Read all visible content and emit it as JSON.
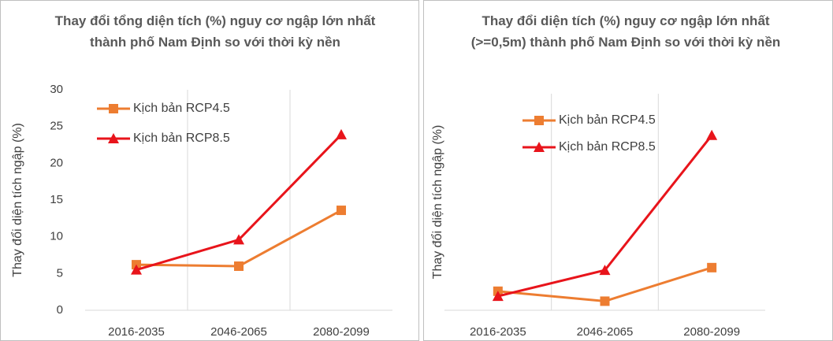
{
  "chart_data": [
    {
      "type": "line",
      "title": "Thay đổi tổng diện tích (%) nguy cơ ngập lớn nhất thành phố Nam Định so với thời kỳ nền",
      "y_label": "Thay đổi diện tích ngập (%)",
      "categories": [
        "2016-2035",
        "2046-2065",
        "2080-2099"
      ],
      "series": [
        {
          "name": "Kịch bản RCP4.5",
          "color": "#ED7D31",
          "marker": "square",
          "values": [
            6.2,
            6.0,
            13.6
          ]
        },
        {
          "name": "Kịch bản RCP8.5",
          "color": "#E8141B",
          "marker": "triangle",
          "values": [
            5.5,
            9.6,
            23.9
          ]
        }
      ],
      "ylim": [
        0,
        30
      ],
      "yticks": [
        0,
        5,
        10,
        15,
        20,
        25,
        30
      ],
      "legend": "upper left"
    },
    {
      "type": "line",
      "title": "Thay đổi diện tích (%) nguy cơ ngập lớn nhất (>=0,5m)  thành phố Nam Định so với thời kỳ nền",
      "y_label": "Thay đổi diện tích ngập (%)",
      "categories": [
        "2016-2035",
        "2046-2065",
        "2080-2099"
      ],
      "series": [
        {
          "name": "Kịch bản RCP4.5",
          "color": "#ED7D31",
          "marker": "square",
          "values": [
            88,
            42,
            197
          ]
        },
        {
          "name": "Kịch bản RCP8.5",
          "color": "#E8141B",
          "marker": "triangle",
          "values": [
            65,
            185,
            808
          ]
        }
      ],
      "ylim": [
        0,
        1000
      ],
      "yticks": [
        0,
        200,
        400,
        600,
        800,
        1000
      ],
      "legend": "upper left"
    }
  ]
}
